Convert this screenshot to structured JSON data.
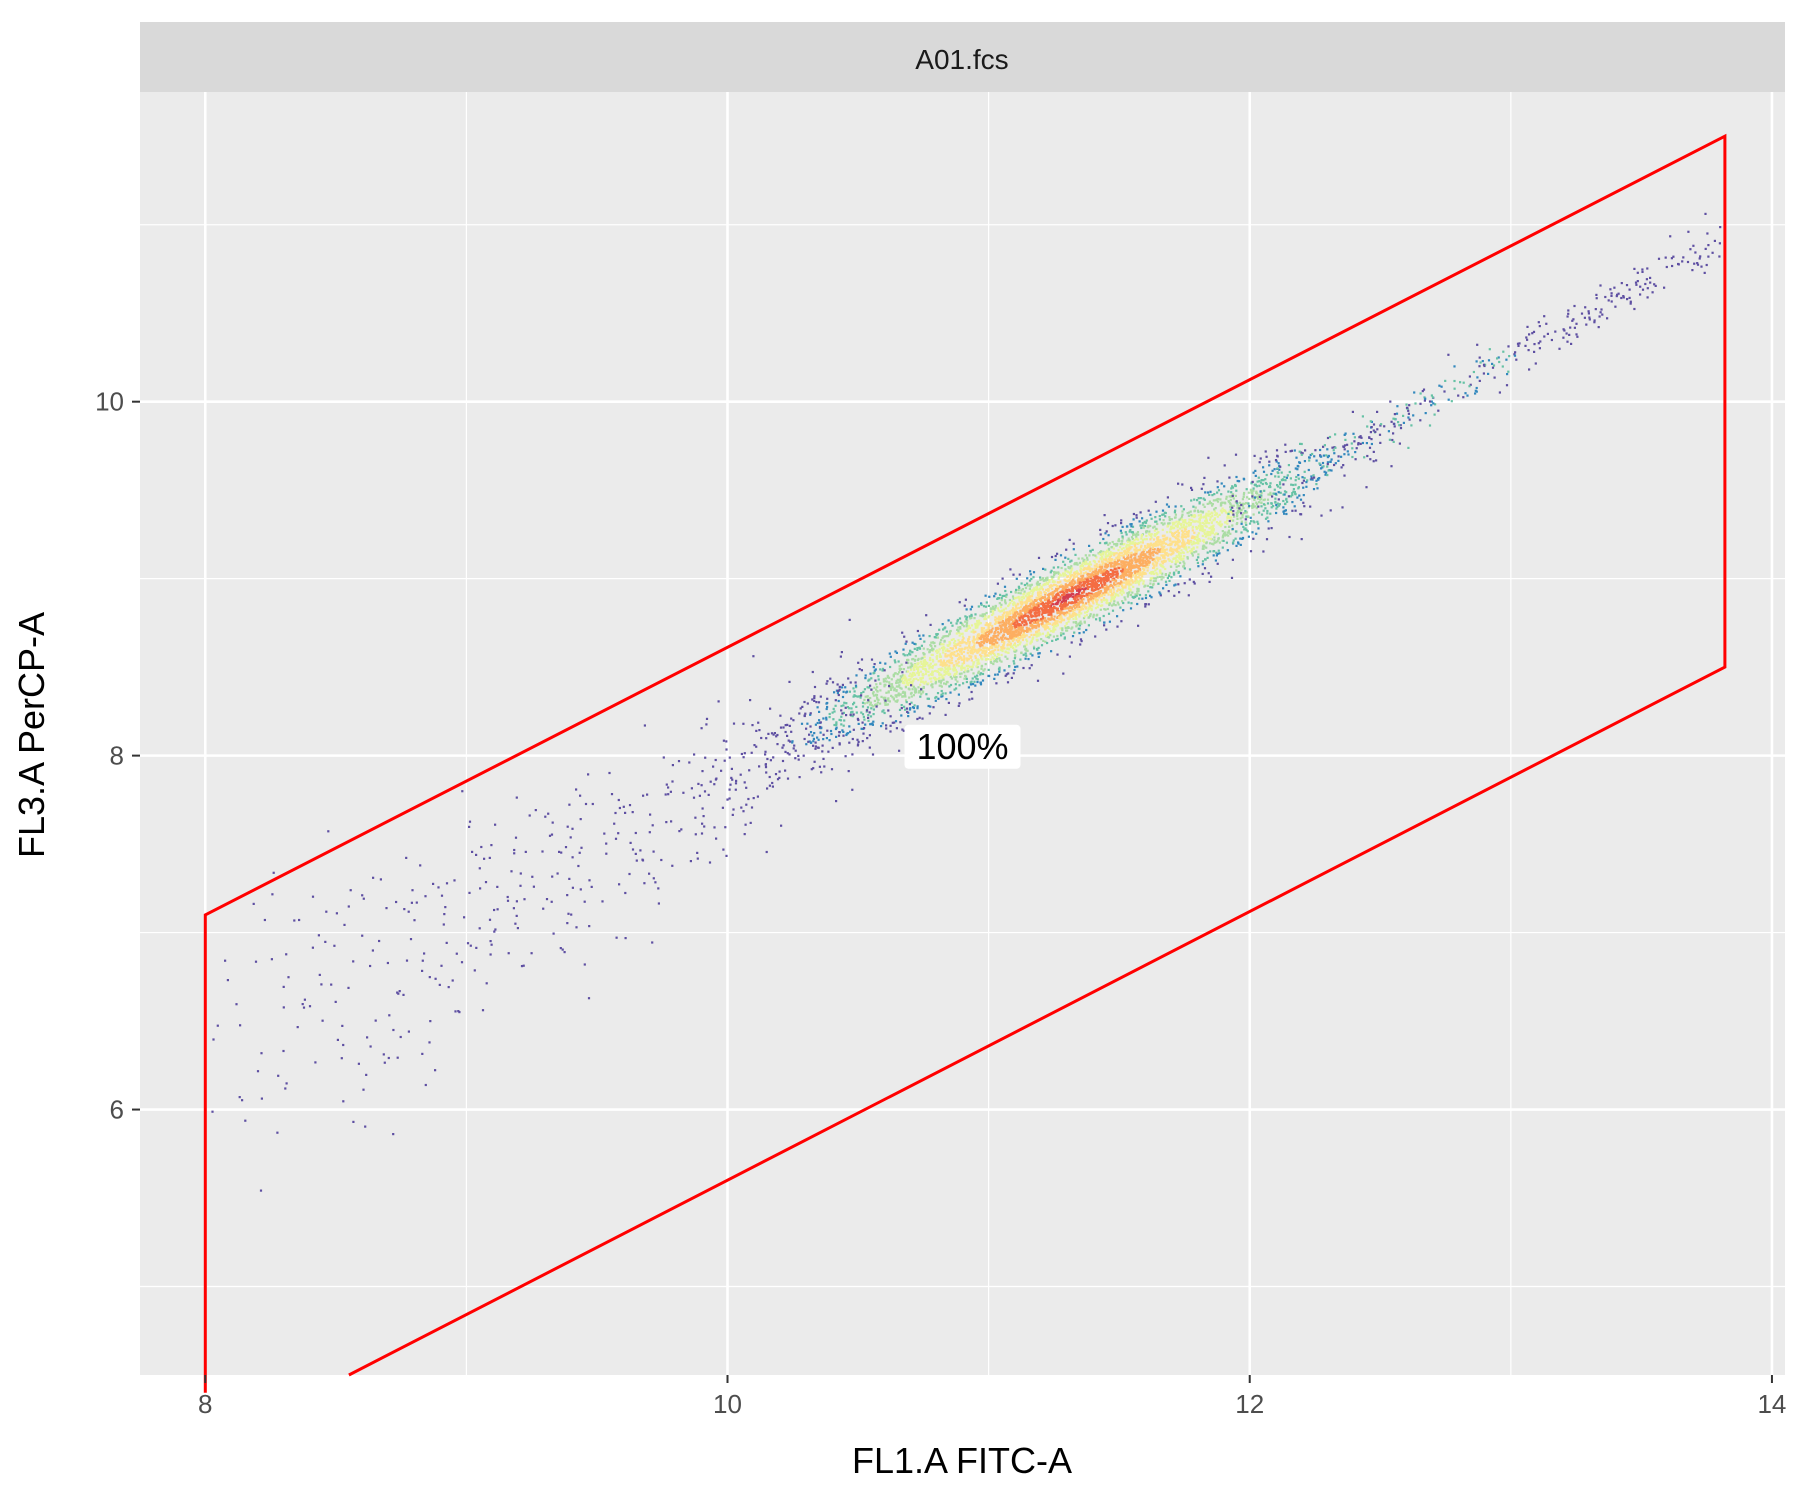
{
  "chart_data": {
    "type": "scatter",
    "panel_title": "A01.fcs",
    "xlabel": "FL1.A FITC-A",
    "ylabel": "FL3.A PerCP-A",
    "xlim": [
      7.75,
      14.05
    ],
    "ylim": [
      4.5,
      11.75
    ],
    "x_ticks": [
      8,
      10,
      12,
      14
    ],
    "y_ticks": [
      6,
      8,
      10
    ],
    "x_tick_labels": [
      "8",
      "10",
      "12",
      "14"
    ],
    "y_tick_labels": [
      "6",
      "8",
      "10"
    ],
    "grid": true,
    "density_colormap": [
      "#5E4FA2",
      "#3288BD",
      "#66C2A5",
      "#ABDDA4",
      "#E6F598",
      "#FEE08B",
      "#FDAE61",
      "#F46D43",
      "#D53E4F"
    ],
    "gate": {
      "color": "#FF0000",
      "vertices": [
        [
          8.0,
          4.4
        ],
        [
          8.0,
          7.1
        ],
        [
          13.82,
          11.5
        ],
        [
          13.82,
          8.5
        ],
        [
          8.55,
          4.5
        ]
      ],
      "label": "100%",
      "label_position": [
        10.9,
        8.05
      ]
    },
    "population": {
      "center": [
        11.3,
        8.9
      ],
      "axis_slope": 0.78
    }
  }
}
